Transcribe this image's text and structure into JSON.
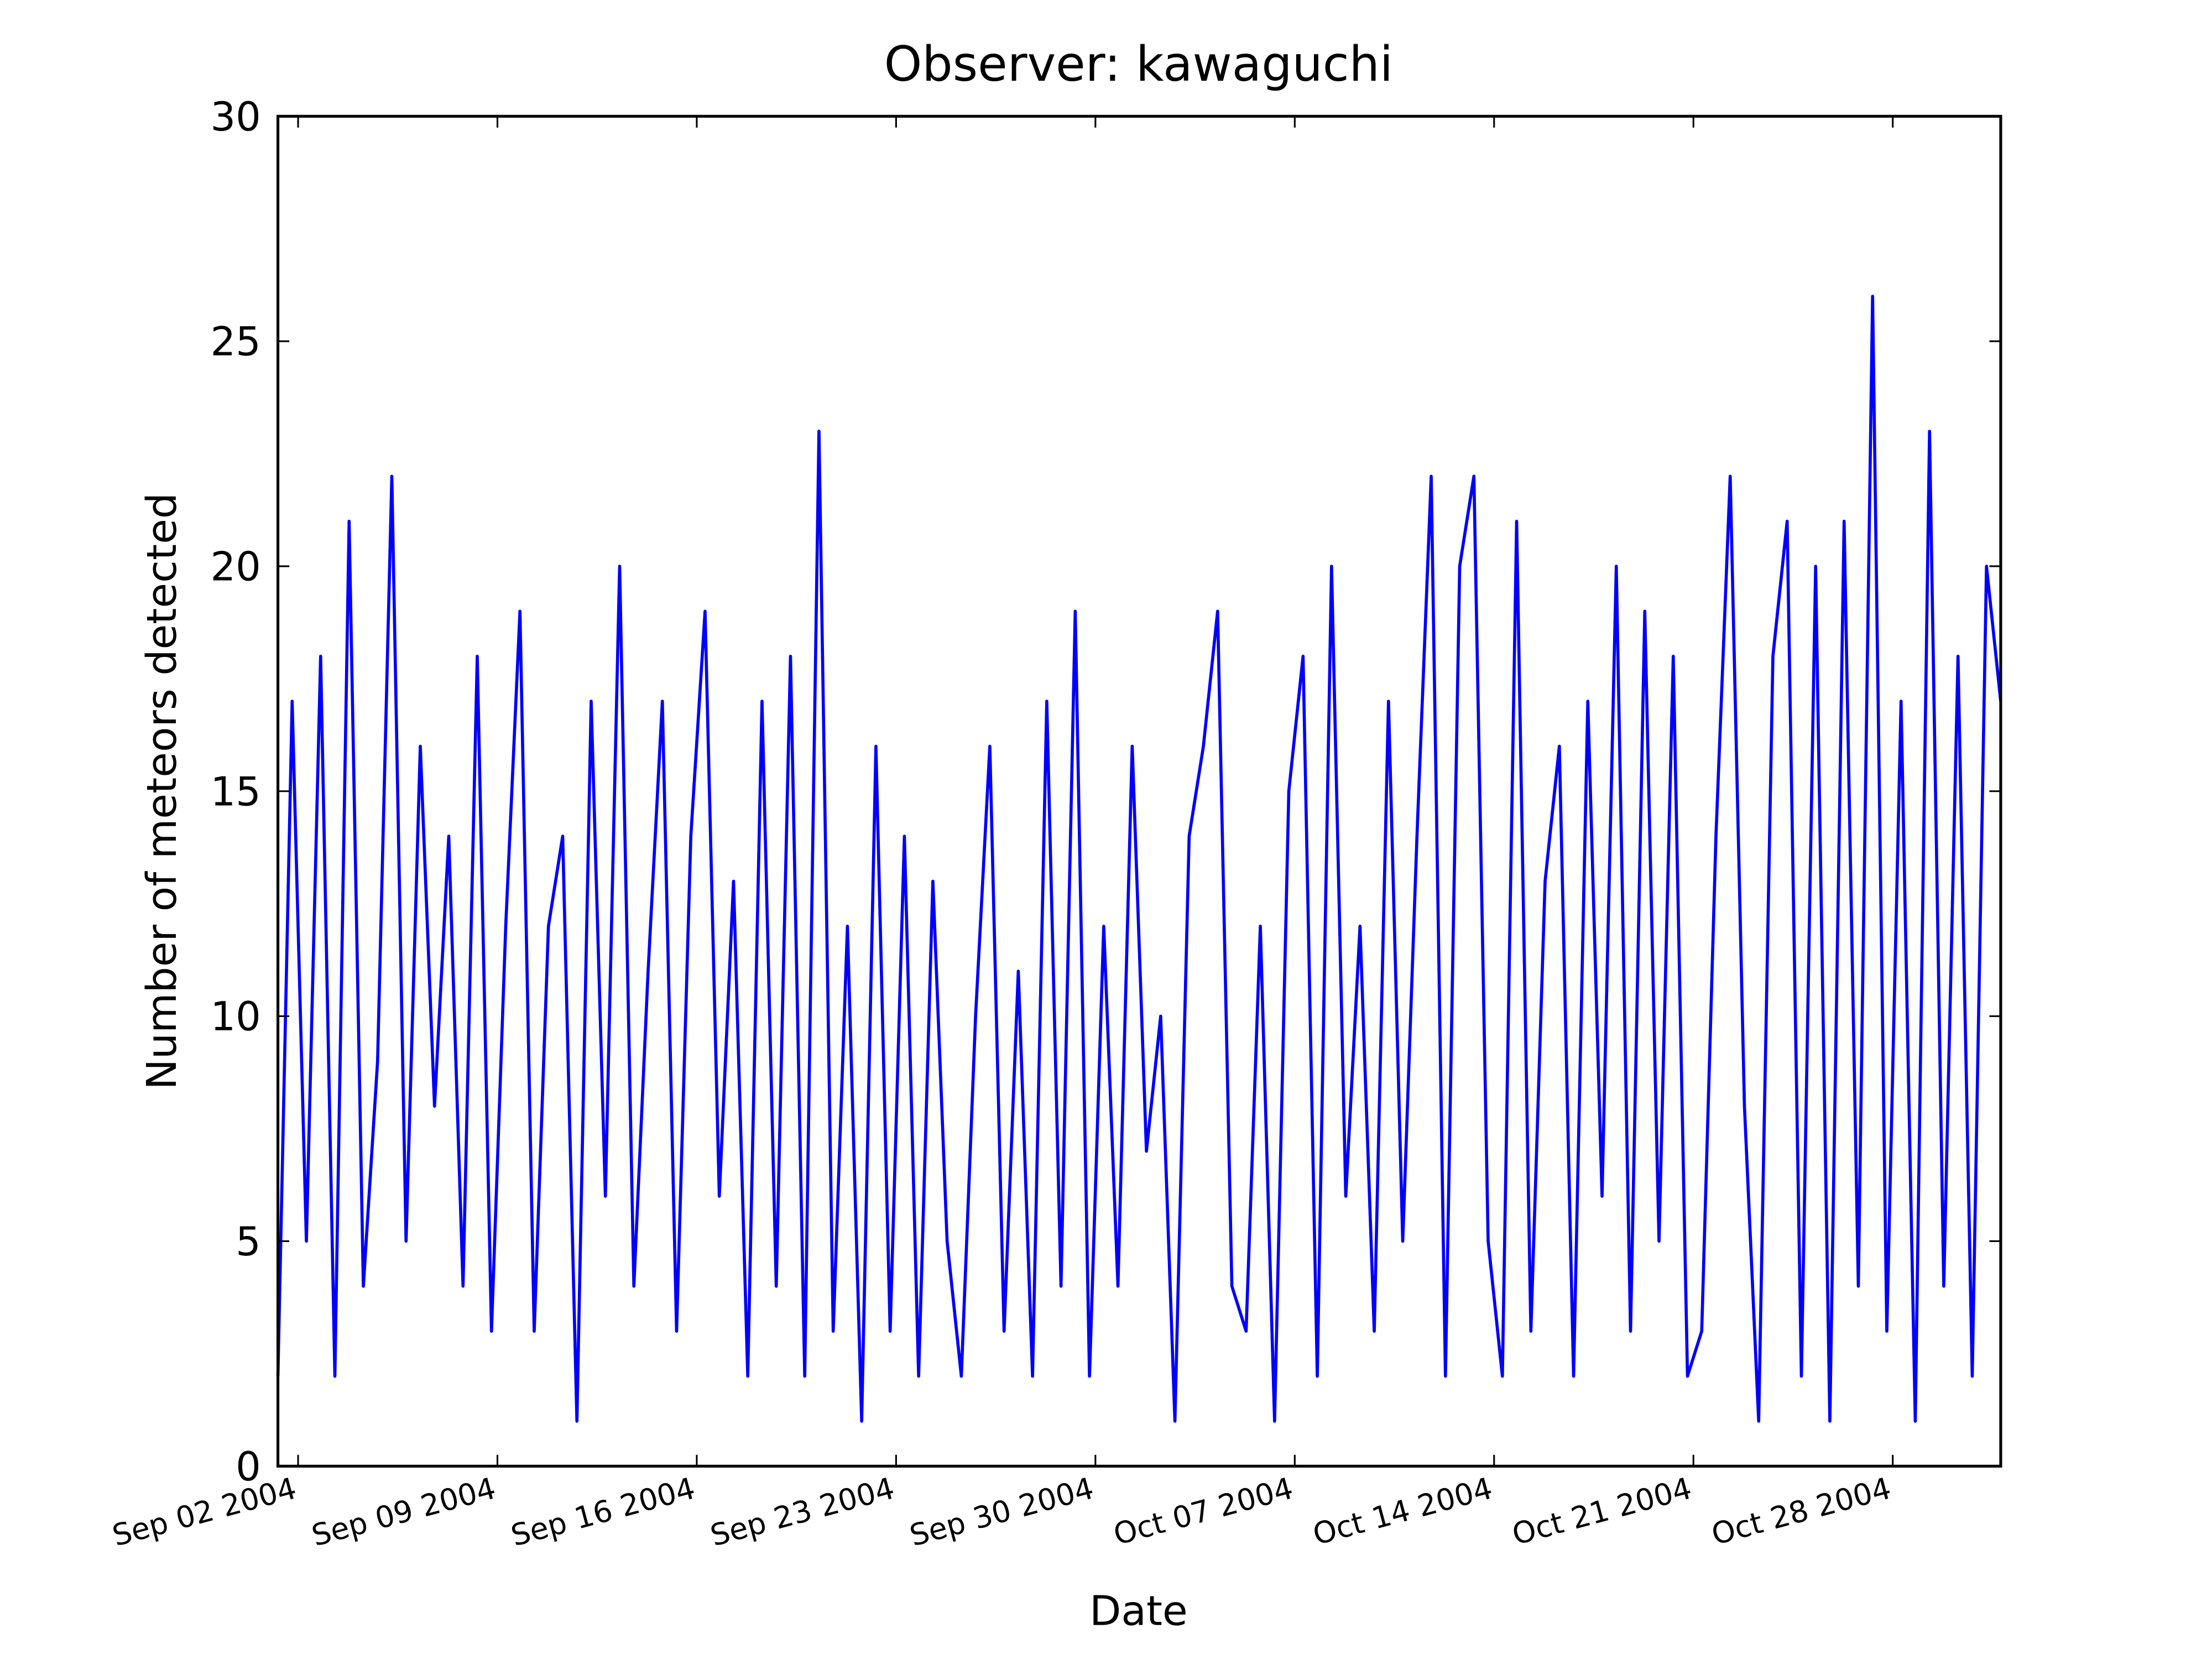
{
  "chart_data": {
    "type": "line",
    "title": "Observer: kawaguchi",
    "x_label": "Date",
    "y_label": "Number of meteors detected",
    "color": "#0000ff",
    "x": [
      "2004-09-01 07:00",
      "2004-09-01 19:00",
      "2004-09-02 07:00",
      "2004-09-02 19:00",
      "2004-09-03 07:00",
      "2004-09-03 19:00",
      "2004-09-04 07:00",
      "2004-09-04 19:00",
      "2004-09-05 07:00",
      "2004-09-05 19:00",
      "2004-09-06 07:00",
      "2004-09-06 19:00",
      "2004-09-07 07:00",
      "2004-09-07 19:00",
      "2004-09-08 07:00",
      "2004-09-08 19:00",
      "2004-09-09 07:00",
      "2004-09-09 19:00",
      "2004-09-10 07:00",
      "2004-09-10 19:00",
      "2004-09-11 07:00",
      "2004-09-11 19:00",
      "2004-09-12 07:00",
      "2004-09-12 19:00",
      "2004-09-13 07:00",
      "2004-09-13 19:00",
      "2004-09-14 07:00",
      "2004-09-14 19:00",
      "2004-09-15 07:00",
      "2004-09-15 19:00",
      "2004-09-16 07:00",
      "2004-09-16 19:00",
      "2004-09-17 07:00",
      "2004-09-17 19:00",
      "2004-09-18 07:00",
      "2004-09-18 19:00",
      "2004-09-19 07:00",
      "2004-09-19 19:00",
      "2004-09-20 07:00",
      "2004-09-20 19:00",
      "2004-09-21 07:00",
      "2004-09-21 19:00",
      "2004-09-22 07:00",
      "2004-09-22 19:00",
      "2004-09-23 07:00",
      "2004-09-23 19:00",
      "2004-09-24 07:00",
      "2004-09-24 19:00",
      "2004-09-25 07:00",
      "2004-09-25 19:00",
      "2004-09-26 07:00",
      "2004-09-26 19:00",
      "2004-09-27 07:00",
      "2004-09-27 19:00",
      "2004-09-28 07:00",
      "2004-09-28 19:00",
      "2004-09-29 07:00",
      "2004-09-29 19:00",
      "2004-09-30 07:00",
      "2004-09-30 19:00",
      "2004-10-01 07:00",
      "2004-10-01 19:00",
      "2004-10-02 07:00",
      "2004-10-02 19:00",
      "2004-10-03 07:00",
      "2004-10-03 19:00",
      "2004-10-04 07:00",
      "2004-10-04 19:00",
      "2004-10-05 07:00",
      "2004-10-05 19:00",
      "2004-10-06 07:00",
      "2004-10-06 19:00",
      "2004-10-07 07:00",
      "2004-10-07 19:00",
      "2004-10-08 07:00",
      "2004-10-08 19:00",
      "2004-10-09 07:00",
      "2004-10-09 19:00",
      "2004-10-10 07:00",
      "2004-10-10 19:00",
      "2004-10-11 07:00",
      "2004-10-11 19:00",
      "2004-10-12 07:00",
      "2004-10-12 19:00",
      "2004-10-13 07:00",
      "2004-10-13 19:00",
      "2004-10-14 07:00",
      "2004-10-14 19:00",
      "2004-10-15 07:00",
      "2004-10-15 19:00",
      "2004-10-16 07:00",
      "2004-10-16 19:00",
      "2004-10-17 07:00",
      "2004-10-17 19:00",
      "2004-10-18 07:00",
      "2004-10-18 19:00",
      "2004-10-19 07:00",
      "2004-10-19 19:00",
      "2004-10-20 07:00",
      "2004-10-20 19:00",
      "2004-10-21 07:00",
      "2004-10-21 19:00",
      "2004-10-22 07:00",
      "2004-10-22 19:00",
      "2004-10-23 07:00",
      "2004-10-23 19:00",
      "2004-10-24 07:00",
      "2004-10-24 19:00",
      "2004-10-25 07:00",
      "2004-10-25 19:00",
      "2004-10-26 07:00",
      "2004-10-26 19:00",
      "2004-10-27 07:00",
      "2004-10-27 19:00",
      "2004-10-28 07:00",
      "2004-10-28 19:00",
      "2004-10-29 07:00",
      "2004-10-29 19:00",
      "2004-10-30 07:00",
      "2004-10-30 19:00",
      "2004-10-31 07:00",
      "2004-10-31 19:00"
    ],
    "values": [
      2,
      17,
      5,
      18,
      2,
      21,
      4,
      9,
      22,
      5,
      16,
      8,
      14,
      4,
      18,
      3,
      12,
      19,
      3,
      12,
      14,
      1,
      17,
      6,
      20,
      4,
      11,
      17,
      3,
      14,
      19,
      6,
      13,
      2,
      17,
      4,
      18,
      2,
      23,
      3,
      12,
      1,
      16,
      3,
      14,
      2,
      13,
      5,
      2,
      10,
      16,
      3,
      11,
      2,
      17,
      4,
      19,
      2,
      12,
      4,
      16,
      7,
      10,
      1,
      14,
      16,
      19,
      4,
      3,
      12,
      1,
      15,
      18,
      2,
      20,
      6,
      12,
      3,
      17,
      5,
      14,
      22,
      2,
      20,
      22,
      5,
      2,
      21,
      3,
      13,
      16,
      2,
      17,
      6,
      20,
      3,
      19,
      5,
      18,
      2,
      3,
      14,
      22,
      8,
      1,
      18,
      21,
      2,
      20,
      1,
      21,
      4,
      26,
      3,
      17,
      1,
      23,
      4,
      18,
      2,
      20,
      17
    ],
    "xlim": [
      "2004-09-01 07:00",
      "2004-10-31 19:00"
    ],
    "xticks": [
      {
        "value": "2004-09-02",
        "label": "Sep 02 2004"
      },
      {
        "value": "2004-09-09",
        "label": "Sep 09 2004"
      },
      {
        "value": "2004-09-16",
        "label": "Sep 16 2004"
      },
      {
        "value": "2004-09-23",
        "label": "Sep 23 2004"
      },
      {
        "value": "2004-09-30",
        "label": "Sep 30 2004"
      },
      {
        "value": "2004-10-07",
        "label": "Oct 07 2004"
      },
      {
        "value": "2004-10-14",
        "label": "Oct 14 2004"
      },
      {
        "value": "2004-10-21",
        "label": "Oct 21 2004"
      },
      {
        "value": "2004-10-28",
        "label": "Oct 28 2004"
      }
    ],
    "ylim": [
      0,
      30
    ],
    "yticks": [
      0,
      5,
      10,
      15,
      20,
      25,
      30
    ],
    "grid": false
  }
}
